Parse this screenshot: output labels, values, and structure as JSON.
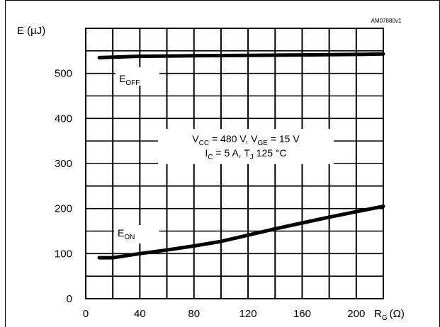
{
  "chart_data": {
    "type": "line",
    "reference_code": "AM07880v1",
    "ylabel": "E (µJ)",
    "xlabel_main": "R",
    "xlabel_sub": "G",
    "xlabel_unit": "(Ω)",
    "xlim": [
      0,
      220
    ],
    "ylim": [
      0,
      600
    ],
    "x_ticks": [
      "0",
      "40",
      "80",
      "120",
      "160",
      "200"
    ],
    "y_ticks": [
      "0",
      "100",
      "200",
      "300",
      "400",
      "500"
    ],
    "grid": true,
    "conditions": {
      "line1": {
        "v": "V",
        "cc": "CC",
        "mid": " = 480 V, V",
        "ge": "GE",
        "end": " = 15 V"
      },
      "line2": {
        "i": "I",
        "c": "C",
        "mid": " = 5 A, T",
        "j": "J",
        "end": " 125 °C"
      }
    },
    "series": [
      {
        "name": "E_OFF",
        "label_main": "E",
        "label_sub": "OFF",
        "x": [
          10,
          40,
          80,
          120,
          160,
          200,
          220
        ],
        "values": [
          535,
          538,
          539,
          540,
          541,
          542,
          543
        ]
      },
      {
        "name": "E_ON",
        "label_main": "E",
        "label_sub": "ON",
        "x": [
          10,
          20,
          40,
          60,
          80,
          100,
          120,
          140,
          160,
          180,
          200,
          220
        ],
        "values": [
          91,
          91,
          100,
          108,
          117,
          127,
          141,
          155,
          168,
          181,
          193,
          205
        ]
      }
    ]
  }
}
